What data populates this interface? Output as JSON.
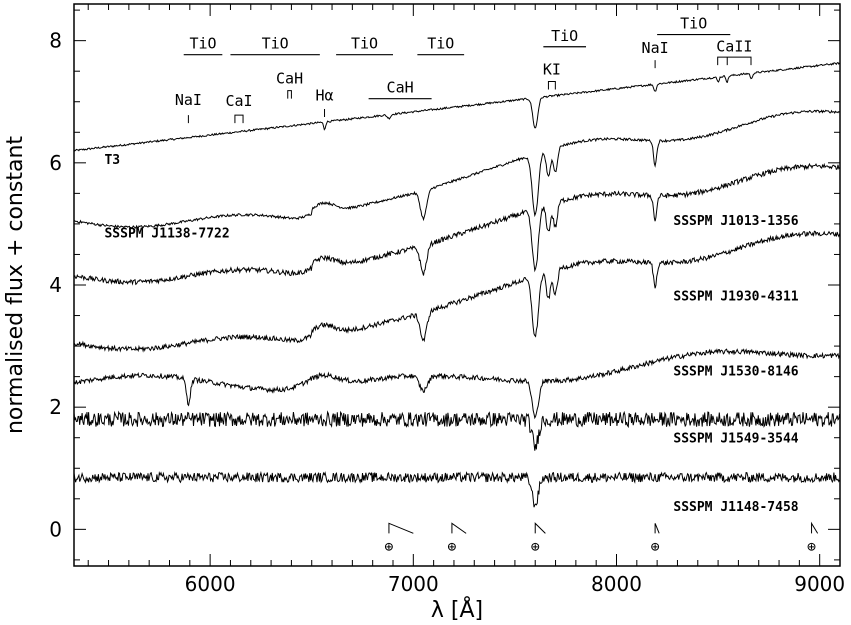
{
  "chart_data": {
    "type": "line",
    "title": "",
    "xlabel": "λ [Å]",
    "ylabel": "normalised flux + constant",
    "xlim": [
      5330,
      9100
    ],
    "ylim": [
      -0.6,
      8.6
    ],
    "xticks": [
      6000,
      7000,
      8000,
      9000
    ],
    "yticks": [
      0,
      2,
      4,
      6,
      8
    ],
    "xtick_labels": [
      "6000",
      "7000",
      "8000",
      "9000"
    ],
    "ytick_labels": [
      "0",
      "2",
      "4",
      "6",
      "8"
    ],
    "grid": false,
    "legend": "none",
    "series": [
      {
        "name": "T3",
        "offset": 6.2,
        "profile": "sdm",
        "noise": 0.015,
        "label_x": 5480,
        "label_y": 5.98
      },
      {
        "name": "SSSPM J1138-7722",
        "offset": 5.1,
        "profile": "lateM",
        "noise": 0.02,
        "label_x": 5480,
        "label_y": 4.78
      },
      {
        "name": "SSSPM J1013-1356",
        "offset": 4.2,
        "profile": "lateM",
        "noise": 0.04,
        "label_x": 8280,
        "label_y": 4.98
      },
      {
        "name": "SSSPM J1930-4311",
        "offset": 3.1,
        "profile": "lateM",
        "noise": 0.04,
        "label_x": 8280,
        "label_y": 3.75
      },
      {
        "name": "SSSPM J1530-8146",
        "offset": 2.4,
        "profile": "midM",
        "noise": 0.04,
        "label_x": 8280,
        "label_y": 2.52
      },
      {
        "name": "SSSPM J1549-3544",
        "offset": 1.8,
        "profile": "flat",
        "noise": 0.12,
        "label_x": 8280,
        "label_y": 1.42
      },
      {
        "name": "SSSPM J1148-7458",
        "offset": 0.85,
        "profile": "flat",
        "noise": 0.08,
        "label_x": 8280,
        "label_y": 0.3
      }
    ],
    "band_annotations": [
      {
        "label": "TiO",
        "x1": 5870,
        "x2": 6060,
        "y": 7.77
      },
      {
        "label": "TiO",
        "x1": 6100,
        "x2": 6540,
        "y": 7.77
      },
      {
        "label": "TiO",
        "x1": 6620,
        "x2": 6900,
        "y": 7.77
      },
      {
        "label": "TiO",
        "x1": 7020,
        "x2": 7250,
        "y": 7.77
      },
      {
        "label": "TiO",
        "x1": 7640,
        "x2": 7850,
        "y": 7.9
      },
      {
        "label": "TiO",
        "x1": 8200,
        "x2": 8560,
        "y": 8.1
      },
      {
        "label": "CaH",
        "x1": 6780,
        "x2": 7090,
        "y": 7.05
      }
    ],
    "line_annotations": [
      {
        "label": "NaI",
        "x": 5893,
        "ytick": 6.65,
        "ytext": 6.95,
        "type": "tick"
      },
      {
        "label": "CaI",
        "x": 6122,
        "x2": 6162,
        "ytick": 6.65,
        "ytext": 6.93,
        "type": "bracket"
      },
      {
        "label": "CaH",
        "x": 6382,
        "x2": 6400,
        "ytick": 7.05,
        "ytext": 7.3,
        "type": "bracket"
      },
      {
        "label": "Hα",
        "x": 6563,
        "ytick": 6.75,
        "ytext": 7.02,
        "type": "tick"
      },
      {
        "label": "KI",
        "x": 7665,
        "x2": 7699,
        "ytick": 7.2,
        "ytext": 7.45,
        "type": "bracket"
      },
      {
        "label": "NaI",
        "x": 8190,
        "ytick": 7.55,
        "ytext": 7.8,
        "type": "tick"
      },
      {
        "label": "CaII",
        "x": 8498,
        "x2": 8662,
        "ytick": 7.6,
        "ytext": 7.82,
        "type": "bracket3"
      }
    ],
    "telluric_markers": [
      {
        "x": 6880,
        "x2": 7000,
        "symbol": "⊕"
      },
      {
        "x": 7190,
        "x2": 7260,
        "symbol": "⊕"
      },
      {
        "x": 7600,
        "x2": 7650,
        "symbol": "⊕"
      },
      {
        "x": 8190,
        "x2": 8210,
        "symbol": "⊕"
      },
      {
        "x": 8960,
        "x2": 8990,
        "symbol": "⊕"
      }
    ]
  }
}
